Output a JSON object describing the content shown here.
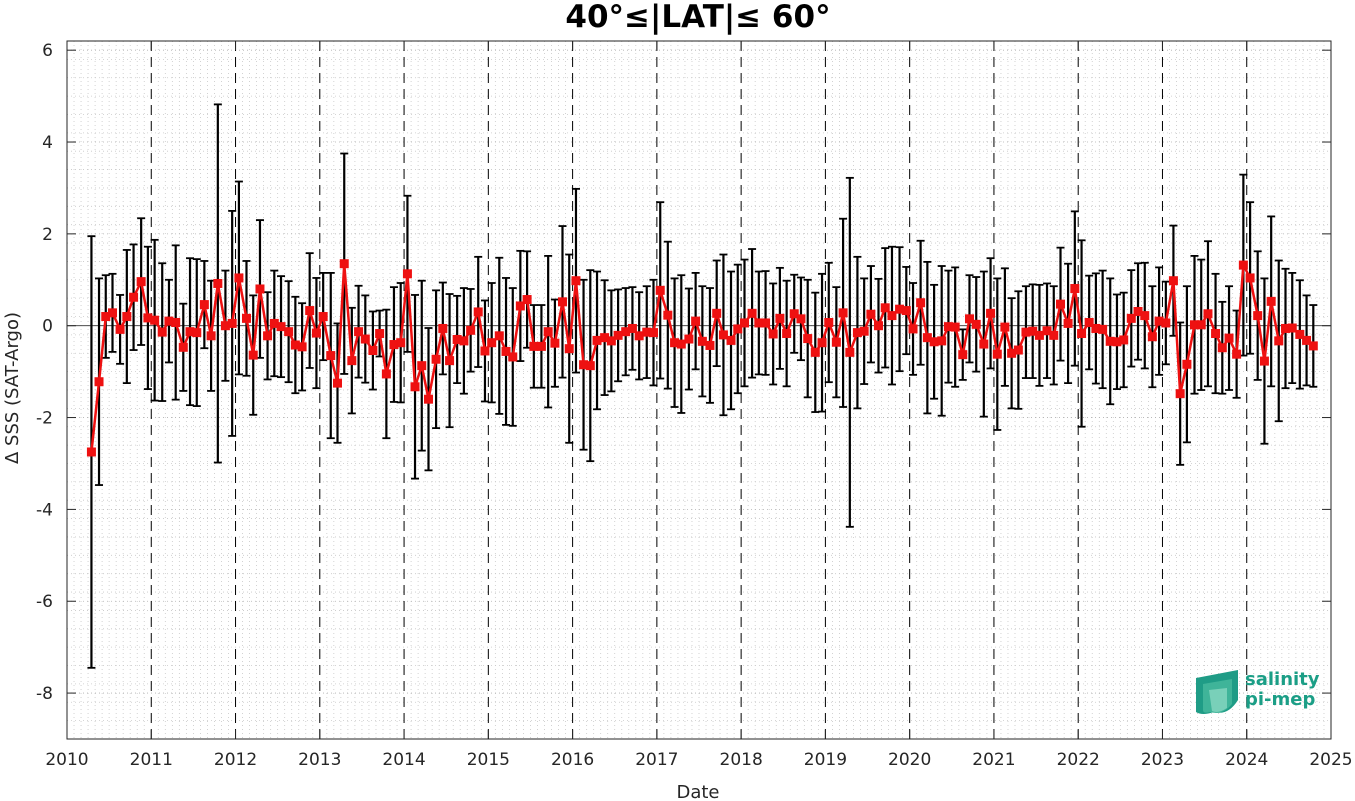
{
  "chart_data": {
    "type": "line",
    "title": "40°≤|LAT|≤ 60°",
    "xlabel": "Date",
    "ylabel": "Δ SSS (SAT-Argo)",
    "xlim": [
      2010,
      2025
    ],
    "ylim": [
      -9,
      6.2
    ],
    "xticks": [
      "2010",
      "2011",
      "2012",
      "2013",
      "2014",
      "2015",
      "2016",
      "2017",
      "2018",
      "2019",
      "2020",
      "2021",
      "2022",
      "2023",
      "2024",
      "2025"
    ],
    "yticks": [
      "6",
      "4",
      "2",
      "0",
      "-2",
      "-4",
      "-6",
      "-8"
    ],
    "grid": "minor dotted",
    "year_separators": "dashed",
    "series": [
      {
        "color": "#ee1111",
        "errorbar_color": "#000000",
        "x": [
          2010.29,
          2010.38,
          2010.46,
          2010.54,
          2010.63,
          2010.71,
          2010.79,
          2010.88,
          2010.96,
          2011.04,
          2011.13,
          2011.21,
          2011.29,
          2011.38,
          2011.46,
          2011.54,
          2011.63,
          2011.71,
          2011.79,
          2011.88,
          2011.96,
          2012.04,
          2012.13,
          2012.21,
          2012.29,
          2012.38,
          2012.46,
          2012.54,
          2012.63,
          2012.71,
          2012.79,
          2012.88,
          2012.96,
          2013.04,
          2013.13,
          2013.21,
          2013.29,
          2013.38,
          2013.46,
          2013.54,
          2013.63,
          2013.71,
          2013.79,
          2013.88,
          2013.96,
          2014.04,
          2014.13,
          2014.21,
          2014.29,
          2014.38,
          2014.46,
          2014.54,
          2014.63,
          2014.71,
          2014.79,
          2014.88,
          2014.96,
          2015.04,
          2015.13,
          2015.21,
          2015.29,
          2015.38,
          2015.46,
          2015.54,
          2015.63,
          2015.71,
          2015.79,
          2015.88,
          2015.96,
          2016.04,
          2016.13,
          2016.21,
          2016.29,
          2016.38,
          2016.46,
          2016.54,
          2016.63,
          2016.71,
          2016.79,
          2016.88,
          2016.96,
          2017.04,
          2017.13,
          2017.21,
          2017.29,
          2017.38,
          2017.46,
          2017.54,
          2017.63,
          2017.71,
          2017.79,
          2017.88,
          2017.96,
          2018.04,
          2018.13,
          2018.21,
          2018.29,
          2018.38,
          2018.46,
          2018.54,
          2018.63,
          2018.71,
          2018.79,
          2018.88,
          2018.96,
          2019.04,
          2019.13,
          2019.21,
          2019.29,
          2019.38,
          2019.46,
          2019.54,
          2019.63,
          2019.71,
          2019.79,
          2019.88,
          2019.96,
          2020.04,
          2020.13,
          2020.21,
          2020.29,
          2020.38,
          2020.46,
          2020.54,
          2020.63,
          2020.71,
          2020.79,
          2020.88,
          2020.96,
          2021.04,
          2021.13,
          2021.21,
          2021.29,
          2021.38,
          2021.46,
          2021.54,
          2021.63,
          2021.71,
          2021.79,
          2021.88,
          2021.96,
          2022.04,
          2022.13,
          2022.21,
          2022.29,
          2022.38,
          2022.46,
          2022.54,
          2022.63,
          2022.71,
          2022.79,
          2022.88,
          2022.96,
          2023.04,
          2023.13,
          2023.21,
          2023.29,
          2023.38,
          2023.46,
          2023.54,
          2023.63,
          2023.71,
          2023.79,
          2023.88,
          2023.96,
          2024.04,
          2024.13,
          2024.21,
          2024.29,
          2024.38,
          2024.46,
          2024.54,
          2024.63,
          2024.71,
          2024.79
        ],
        "y": [
          -2.75,
          -1.22,
          0.2,
          0.28,
          -0.08,
          0.2,
          0.62,
          0.96,
          0.17,
          0.12,
          -0.14,
          0.1,
          0.07,
          -0.47,
          -0.13,
          -0.15,
          0.46,
          -0.22,
          0.92,
          0.0,
          0.05,
          1.04,
          0.16,
          -0.64,
          0.8,
          -0.22,
          0.05,
          -0.02,
          -0.13,
          -0.42,
          -0.46,
          0.33,
          -0.16,
          0.2,
          -0.65,
          -1.25,
          1.35,
          -0.76,
          -0.13,
          -0.29,
          -0.54,
          -0.17,
          -1.05,
          -0.41,
          -0.37,
          1.13,
          -1.33,
          -0.87,
          -1.6,
          -0.73,
          -0.06,
          -0.76,
          -0.3,
          -0.33,
          -0.1,
          0.3,
          -0.55,
          -0.37,
          -0.22,
          -0.56,
          -0.68,
          0.43,
          0.57,
          -0.45,
          -0.45,
          -0.13,
          -0.38,
          0.52,
          -0.5,
          0.98,
          -0.85,
          -0.87,
          -0.32,
          -0.26,
          -0.33,
          -0.21,
          -0.13,
          -0.06,
          -0.22,
          -0.14,
          -0.15,
          0.77,
          0.23,
          -0.37,
          -0.4,
          -0.29,
          0.1,
          -0.34,
          -0.43,
          0.27,
          -0.2,
          -0.32,
          -0.07,
          0.06,
          0.27,
          0.06,
          0.06,
          -0.18,
          0.16,
          -0.17,
          0.26,
          0.15,
          -0.28,
          -0.58,
          -0.37,
          0.07,
          -0.36,
          0.28,
          -0.58,
          -0.15,
          -0.12,
          0.25,
          0.0,
          0.39,
          0.22,
          0.36,
          0.33,
          -0.07,
          0.5,
          -0.26,
          -0.35,
          -0.33,
          -0.02,
          -0.03,
          -0.63,
          0.15,
          0.03,
          -0.4,
          0.27,
          -0.62,
          -0.03,
          -0.6,
          -0.53,
          -0.14,
          -0.12,
          -0.21,
          -0.11,
          -0.21,
          0.47,
          0.05,
          0.81,
          -0.17,
          0.07,
          -0.06,
          -0.08,
          -0.34,
          -0.35,
          -0.31,
          0.16,
          0.31,
          0.22,
          -0.24,
          0.1,
          0.06,
          0.98,
          -1.48,
          -0.84,
          0.02,
          0.02,
          0.26,
          -0.17,
          -0.48,
          -0.27,
          -0.62,
          1.32,
          1.04,
          0.22,
          -0.77,
          0.53,
          -0.33,
          -0.06,
          -0.05,
          -0.19,
          -0.32,
          -0.44
        ],
        "err": [
          4.7,
          2.25,
          0.9,
          0.85,
          0.75,
          1.45,
          1.15,
          1.38,
          1.55,
          1.75,
          1.5,
          0.9,
          1.68,
          0.95,
          1.6,
          1.6,
          0.95,
          1.2,
          3.9,
          1.2,
          2.45,
          2.1,
          1.25,
          1.3,
          1.5,
          0.95,
          1.15,
          1.1,
          1.1,
          1.05,
          0.95,
          1.25,
          1.2,
          0.95,
          1.8,
          1.3,
          2.4,
          1.15,
          1.0,
          0.95,
          0.85,
          0.5,
          1.4,
          1.25,
          1.3,
          1.7,
          2.0,
          1.85,
          1.55,
          1.5,
          1.0,
          1.45,
          0.95,
          1.15,
          0.9,
          1.2,
          1.1,
          1.3,
          1.7,
          1.6,
          1.5,
          1.2,
          1.05,
          0.9,
          0.9,
          1.65,
          0.95,
          1.65,
          2.05,
          2.0,
          1.85,
          2.08,
          1.5,
          1.25,
          1.1,
          1.0,
          0.95,
          0.9,
          0.95,
          1.0,
          1.15,
          1.92,
          1.6,
          1.4,
          1.5,
          1.1,
          1.05,
          1.2,
          1.25,
          1.15,
          1.75,
          1.5,
          1.4,
          1.38,
          1.4,
          1.12,
          1.13,
          1.1,
          1.1,
          1.15,
          0.85,
          0.9,
          1.28,
          1.3,
          1.5,
          1.3,
          1.2,
          2.05,
          3.8,
          1.65,
          1.15,
          1.05,
          1.02,
          1.3,
          1.5,
          1.35,
          0.95,
          1.0,
          1.35,
          1.65,
          1.24,
          1.63,
          1.22,
          1.3,
          0.55,
          0.95,
          1.03,
          1.58,
          1.2,
          1.65,
          1.28,
          1.2,
          1.28,
          1.0,
          1.02,
          1.1,
          1.03,
          1.07,
          1.23,
          1.3,
          1.68,
          2.03,
          1.02,
          1.2,
          1.28,
          1.37,
          1.03,
          1.03,
          1.05,
          1.05,
          1.15,
          1.1,
          1.17,
          0.9,
          1.2,
          1.55,
          1.7,
          1.5,
          1.42,
          1.58,
          1.3,
          1.0,
          1.13,
          0.95,
          1.97,
          1.65,
          1.4,
          1.8,
          1.85,
          1.75,
          1.3,
          1.2,
          1.18,
          0.98,
          0.89
        ]
      }
    ]
  },
  "logo": {
    "line1": "salinity",
    "line2": "pi-mep"
  }
}
